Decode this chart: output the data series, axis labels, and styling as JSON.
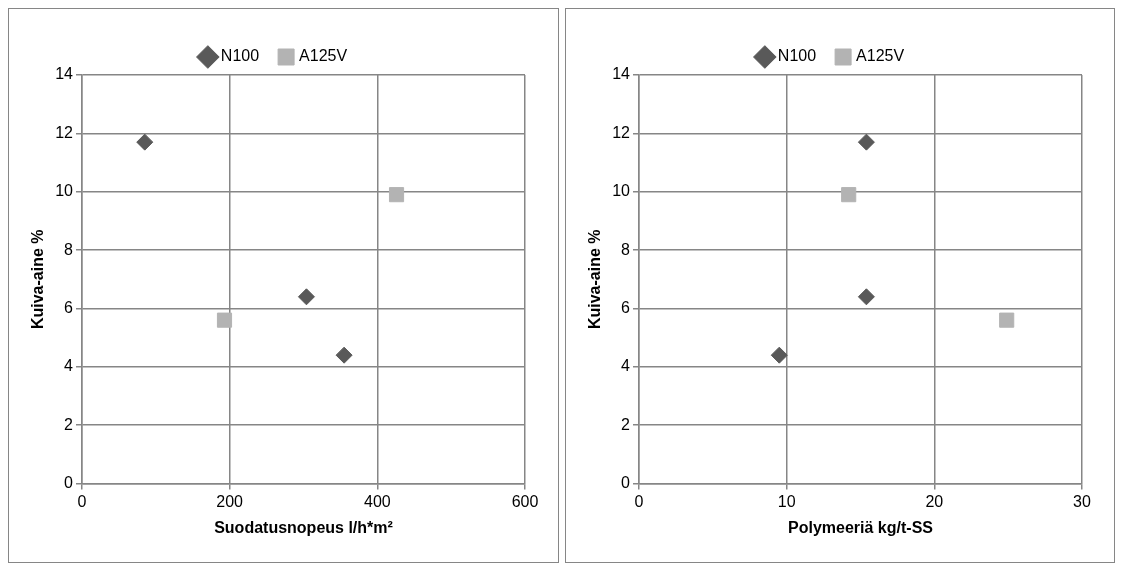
{
  "chart_data": [
    {
      "type": "scatter",
      "xlabel": "Suodatusnopeus l/h*m²",
      "ylabel": "Kuiva-aine %",
      "xlim": [
        0,
        600
      ],
      "xticks": [
        0,
        200,
        400,
        600
      ],
      "ylim": [
        0,
        14
      ],
      "yticks": [
        0,
        2,
        4,
        6,
        8,
        10,
        12,
        14
      ],
      "grid": true,
      "legend": "top",
      "series": [
        {
          "name": "N100",
          "color": "#595959",
          "marker": "diamond",
          "x": [
            85,
            304,
            355
          ],
          "values": [
            11.7,
            6.4,
            4.4
          ]
        },
        {
          "name": "A125V",
          "color": "#b3b3b3",
          "marker": "square",
          "x": [
            193,
            426
          ],
          "values": [
            5.6,
            9.9
          ]
        }
      ]
    },
    {
      "type": "scatter",
      "xlabel": "Polymeeriä kg/t-SS",
      "ylabel": "Kuiva-aine %",
      "xlim": [
        0,
        30
      ],
      "xticks": [
        0,
        10,
        20,
        30
      ],
      "ylim": [
        0,
        14
      ],
      "yticks": [
        0,
        2,
        4,
        6,
        8,
        10,
        12,
        14
      ],
      "grid": true,
      "legend": "top",
      "series": [
        {
          "name": "N100",
          "color": "#595959",
          "marker": "diamond",
          "x": [
            15.4,
            15.4,
            9.5
          ],
          "values": [
            11.7,
            6.4,
            4.4
          ]
        },
        {
          "name": "A125V",
          "color": "#b3b3b3",
          "marker": "square",
          "x": [
            14.2,
            24.9
          ],
          "values": [
            9.9,
            5.6
          ]
        }
      ]
    }
  ]
}
